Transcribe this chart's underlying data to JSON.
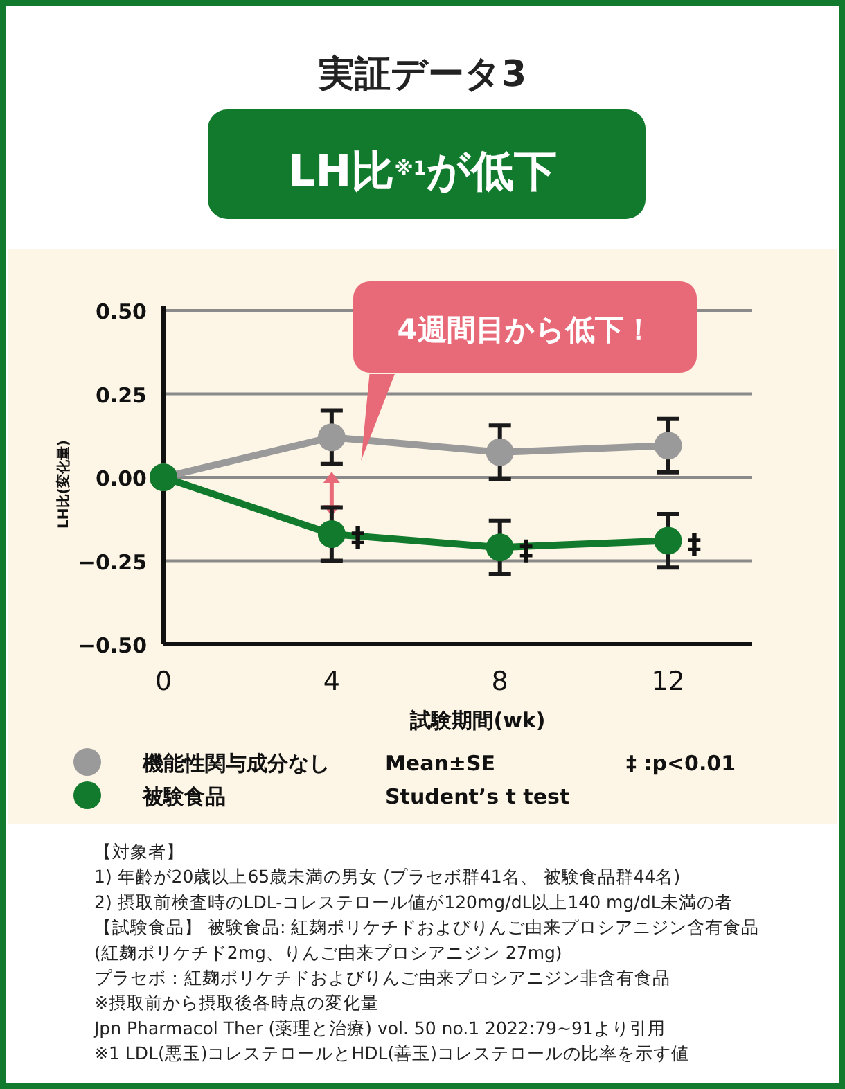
{
  "chart_data": {
    "type": "line",
    "title": "実証データ3",
    "subtitle": "LH比$^{※1}$が低下",
    "xlabel": "試験期間(wk)",
    "ylabel": "LH比(変化量)",
    "x": [
      0,
      4,
      8,
      12
    ],
    "xlim": [
      0,
      14
    ],
    "xticks": [
      0,
      4,
      8,
      12
    ],
    "ylim": [
      -0.5,
      0.5
    ],
    "yticks": [
      {
        "value": -0.5,
        "label": "−0.50"
      },
      {
        "value": -0.25,
        "label": "−0.25"
      },
      {
        "value": 0,
        "label": "0.00"
      },
      {
        "value": 0.25,
        "label": "0.25"
      },
      {
        "value": 0.5,
        "label": "0.50"
      }
    ],
    "grid": "y",
    "legend": "bottom",
    "marker": "circle",
    "line_style": "solid",
    "series": [
      {
        "name": "機能性関与成分なし",
        "color": "#9a9a9a",
        "values": [
          0,
          0.12,
          0.075,
          0.095
        ],
        "errors": [
          null,
          0.08,
          0.08,
          0.08
        ]
      },
      {
        "name": "被験食品",
        "color": "#117a2c",
        "values": [
          0,
          -0.17,
          -0.21,
          -0.19
        ],
        "errors": [
          null,
          0.08,
          0.08,
          0.08
        ]
      }
    ],
    "annotations": [
      "4週間目から低下！",
      {
        "text": "‡",
        "x": 4,
        "y": -0.17
      },
      {
        "text": "‡",
        "x": 8,
        "y": -0.21
      },
      {
        "text": "‡",
        "x": 12,
        "y": -0.19
      },
      "Mean±SE",
      "Student’s t test",
      "‡ :p<0.01",
      "【対象者】",
      "1) 年齢が20歳以上65歳未満の男女 (プラセボ群41名、 被験食品群44名)",
      "2) 摂取前検査時のLDL-コレステロール値が120mg/dL以上140 mg/dL未満の者",
      "【試験食品】 被験食品: 紅麹ポリケチドおよびりんご由来プロシアニジン含有食品",
      "(紅麹ポリケチド2mg、りんご由来プロシアニジン 27mg)",
      "プラセボ：紅麹ポリケチドおよびりんご由来プロシアニジン非含有食品",
      "※摂取前から摂取後各時点の変化量",
      "Jpn Pharmacol Ther (薬理と治療) vol. 50 no.1 2022:79~91より引用",
      "※1 LDL(悪玉)コレステロールとHDL(善玉)コレステロールの比率を示す値"
    ]
  }
}
